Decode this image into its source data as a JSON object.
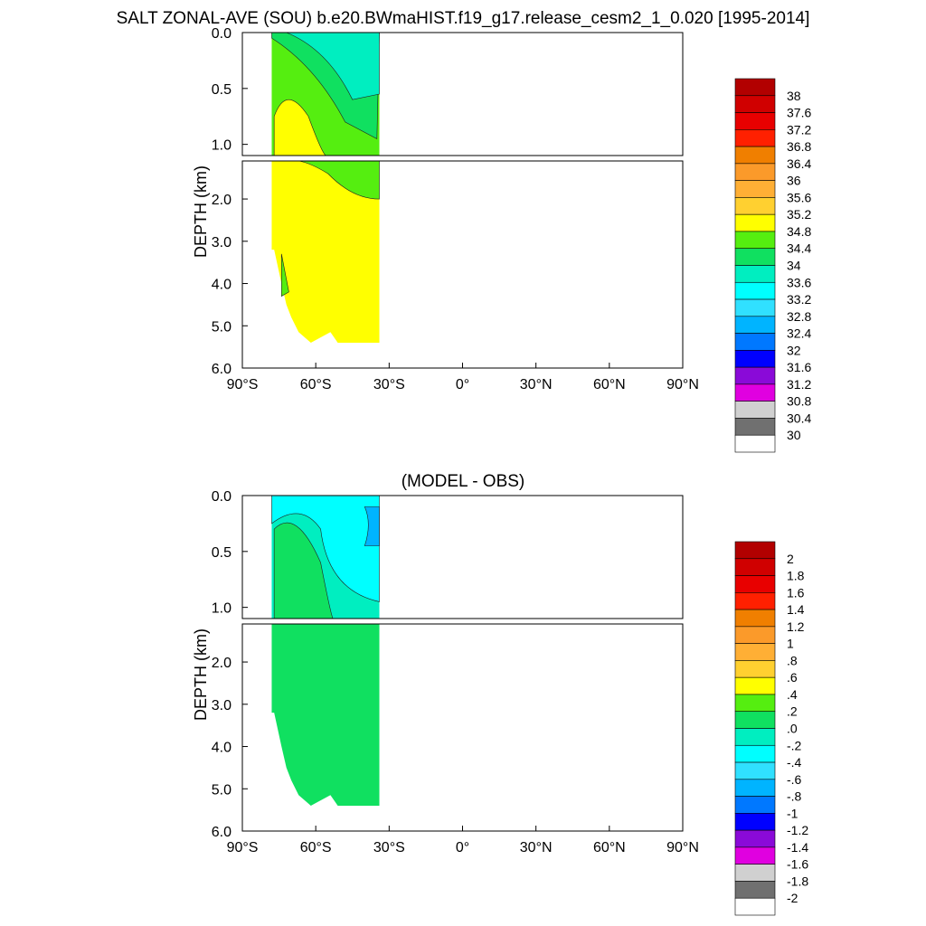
{
  "page": {
    "main_title": "SALT ZONAL-AVE (SOU) b.e20.BWmaHIST.f19_g17.release_cesm2_1_0.020 [1995-2014]",
    "diff_title": "(MODEL - OBS)"
  },
  "chart_data": [
    {
      "type": "heatmap",
      "name": "salt",
      "title": "SALT ZONAL-AVE (SOU) b.e20.BWmaHIST.f19_g17.release_cesm2_1_0.020 [1995-2014]",
      "ylabel": "DEPTH (km)",
      "xlim": [
        -90,
        90
      ],
      "ylim": [
        0,
        6
      ],
      "x_ticks": [
        -90,
        -60,
        -30,
        0,
        30,
        60,
        90
      ],
      "x_tick_labels": [
        "90°S",
        "60°S",
        "30°S",
        "0°",
        "30°N",
        "60°N",
        "90°N"
      ],
      "y_ticks_upper": [
        0,
        0.5,
        1.0
      ],
      "y_tick_labels_upper": [
        "0.0",
        "0.5",
        "1.0"
      ],
      "y_ticks_lower": [
        2,
        3,
        4,
        5,
        6
      ],
      "y_tick_labels_lower": [
        "2.0",
        "3.0",
        "4.0",
        "5.0",
        "6.0"
      ],
      "upper_panel_depth_range": [
        0,
        1.1
      ],
      "lower_panel_depth_range": [
        1.1,
        6
      ],
      "data_lat_range": [
        -78,
        -34
      ],
      "bottom_depth_km": 5.4,
      "colorbar": {
        "labels": [
          "38",
          "37.6",
          "37.2",
          "36.8",
          "36.4",
          "36",
          "35.6",
          "35.2",
          "34.8",
          "34.4",
          "34",
          "33.6",
          "33.2",
          "32.8",
          "32.4",
          "32",
          "31.6",
          "31.2",
          "30.8",
          "30.4",
          "30"
        ],
        "colors": [
          "#b20000",
          "#d00000",
          "#e80000",
          "#ff2000",
          "#f07f00",
          "#fb9a2a",
          "#ffaf35",
          "#ffd030",
          "#ffff00",
          "#55ee10",
          "#10e060",
          "#00eec0",
          "#00ffff",
          "#30e0ff",
          "#00b4ff",
          "#0078ff",
          "#0000ff",
          "#8a0ad8",
          "#e000e0",
          "#d0d0d0",
          "#707070",
          "#ffffff"
        ]
      },
      "fields": {
        "deep_value": 34.8,
        "intermediate_value": 34.4,
        "surface_value": 34.0,
        "fresh_surface_value": 33.6,
        "north_surface_value": 33.2
      }
    },
    {
      "type": "heatmap",
      "name": "model-obs",
      "title": "(MODEL - OBS)",
      "ylabel": "DEPTH (km)",
      "xlim": [
        -90,
        90
      ],
      "ylim": [
        0,
        6
      ],
      "x_ticks": [
        -90,
        -60,
        -30,
        0,
        30,
        60,
        90
      ],
      "x_tick_labels": [
        "90°S",
        "60°S",
        "30°S",
        "0°",
        "30°N",
        "60°N",
        "90°N"
      ],
      "y_ticks_upper": [
        0,
        0.5,
        1.0
      ],
      "y_tick_labels_upper": [
        "0.0",
        "0.5",
        "1.0"
      ],
      "y_ticks_lower": [
        2,
        3,
        4,
        5,
        6
      ],
      "y_tick_labels_lower": [
        "2.0",
        "3.0",
        "4.0",
        "5.0",
        "6.0"
      ],
      "upper_panel_depth_range": [
        0,
        1.1
      ],
      "lower_panel_depth_range": [
        1.1,
        6
      ],
      "data_lat_range": [
        -78,
        -34
      ],
      "bottom_depth_km": 5.4,
      "colorbar": {
        "labels": [
          "2",
          "1.8",
          "1.6",
          "1.4",
          "1.2",
          "1",
          ".8",
          ".6",
          ".4",
          ".2",
          ".0",
          "-.2",
          "-.4",
          "-.6",
          "-.8",
          "-1",
          "-1.2",
          "-1.4",
          "-1.6",
          "-1.8",
          "-2"
        ],
        "colors": [
          "#b20000",
          "#d00000",
          "#e80000",
          "#ff2000",
          "#f07f00",
          "#fb9a2a",
          "#ffaf35",
          "#ffd030",
          "#ffff00",
          "#55ee10",
          "#10e060",
          "#00eec0",
          "#00ffff",
          "#30e0ff",
          "#00b4ff",
          "#0078ff",
          "#0000ff",
          "#8a0ad8",
          "#e000e0",
          "#d0d0d0",
          "#707070",
          "#ffffff"
        ]
      },
      "fields": {
        "deep_value": 0.1,
        "shallow_value": -0.1,
        "surface_value": -0.3,
        "north_surface_value": -0.7
      }
    }
  ]
}
